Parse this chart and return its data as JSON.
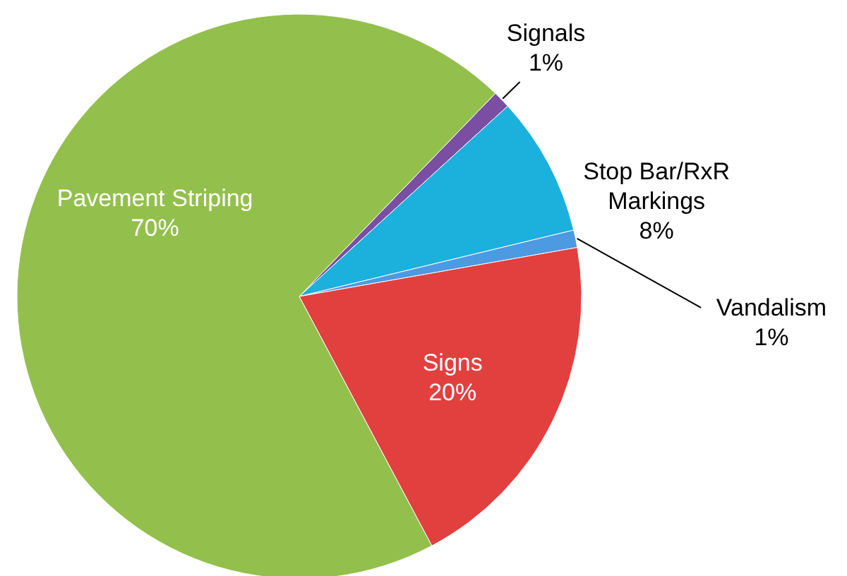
{
  "chart_data": {
    "type": "pie",
    "categories": [
      "Signals",
      "Stop Bar/RxR Markings",
      "Vandalism",
      "Signs",
      "Pavement Striping"
    ],
    "values": [
      1,
      8,
      1,
      20,
      70
    ],
    "value_labels": [
      "1%",
      "8%",
      "1%",
      "20%",
      "70%"
    ],
    "colors": [
      "#7a4ea3",
      "#1cb0dc",
      "#4b9ae2",
      "#e23f3f",
      "#93c04c"
    ]
  }
}
